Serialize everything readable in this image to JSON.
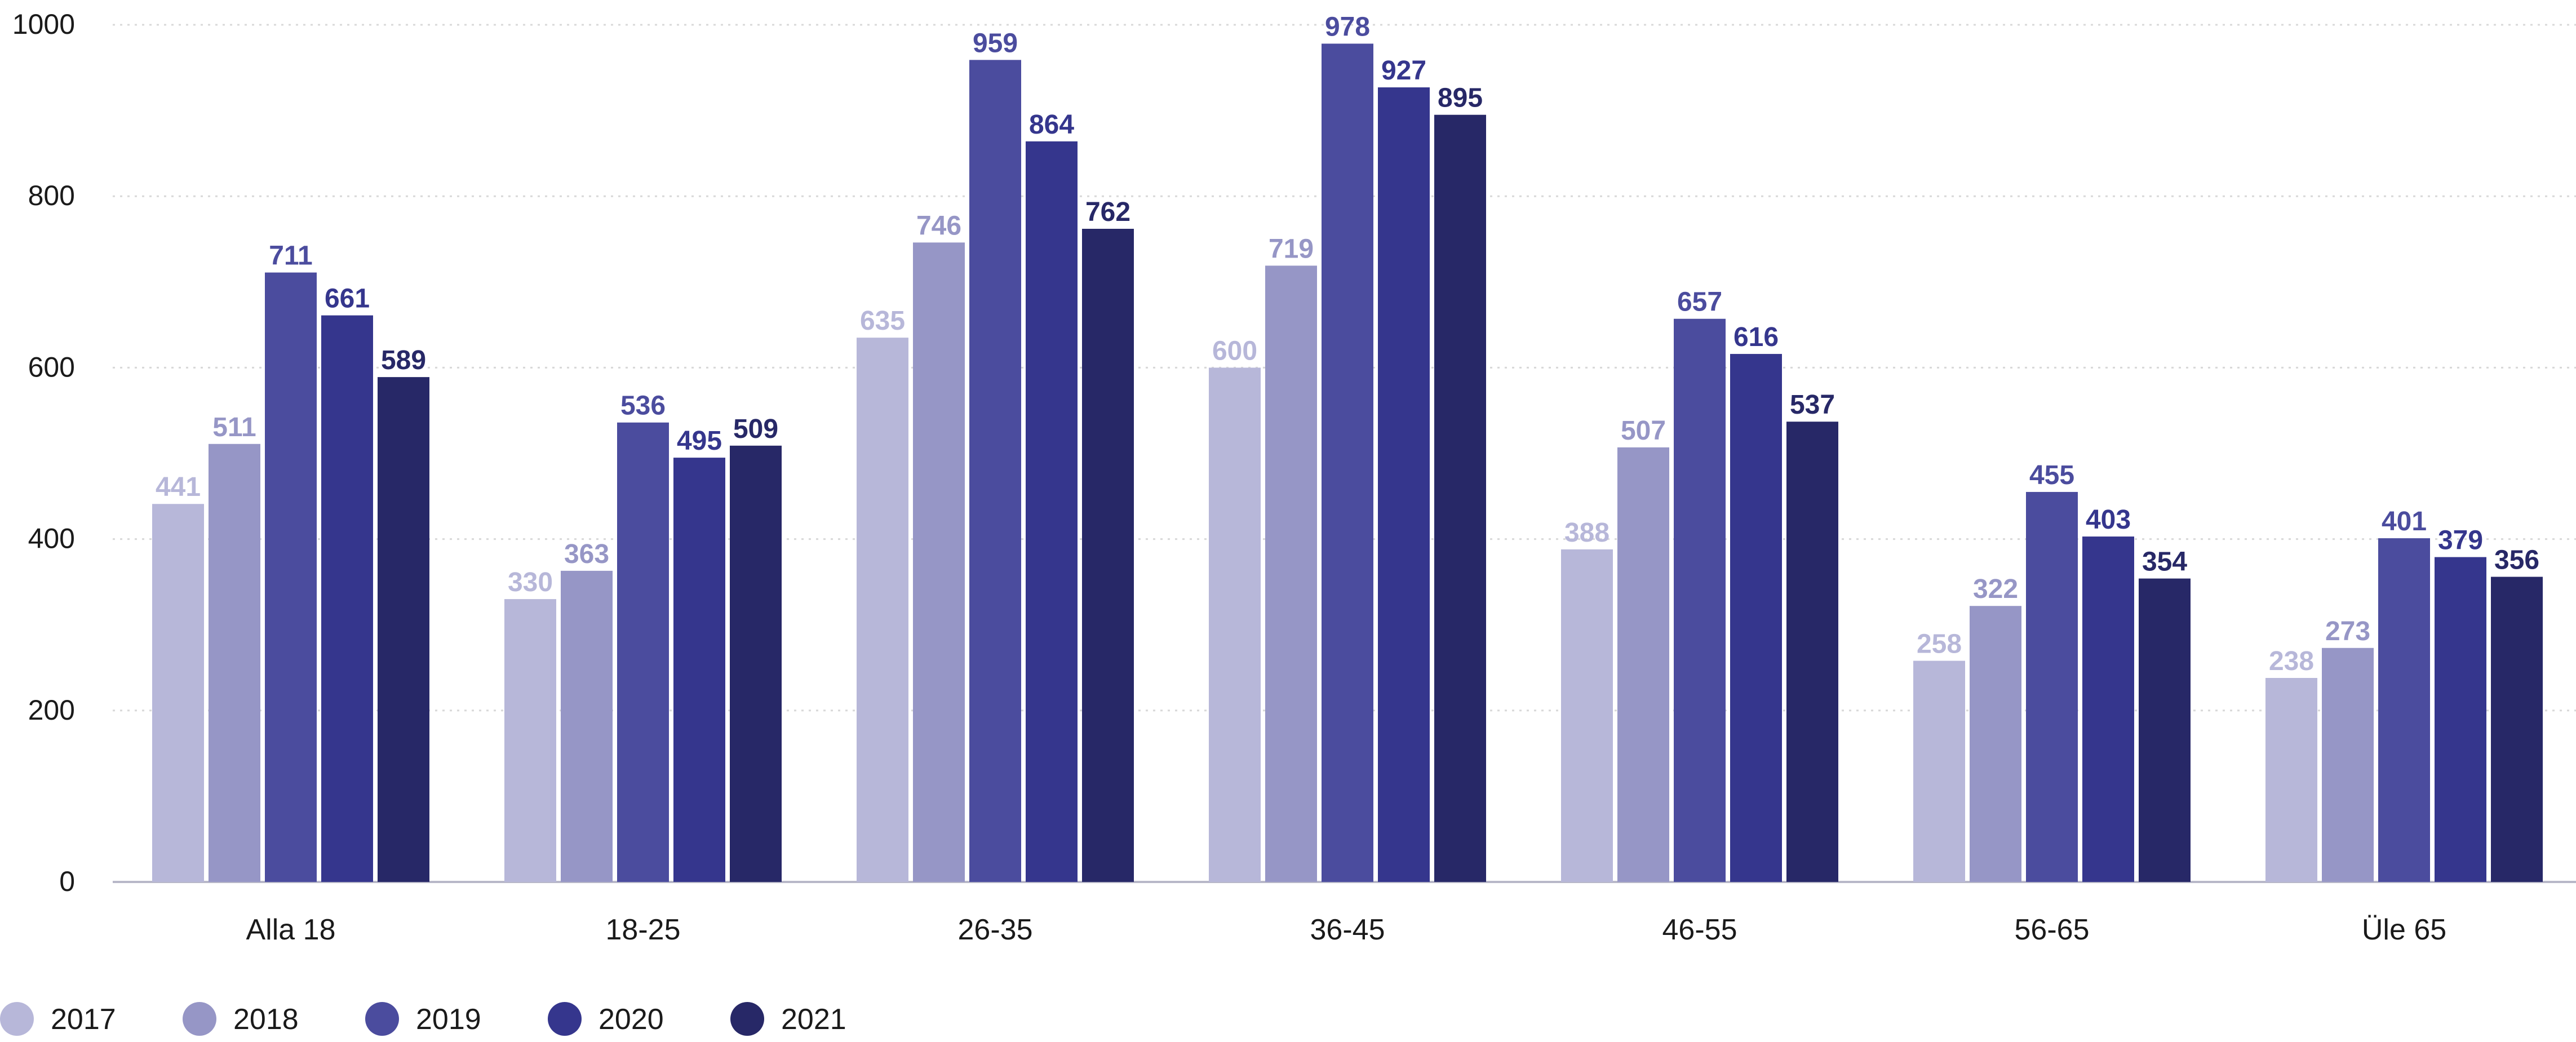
{
  "chart_data": {
    "type": "bar",
    "categories": [
      "Alla 18",
      "18-25",
      "26-35",
      "36-45",
      "46-55",
      "56-65",
      "Üle 65"
    ],
    "series": [
      {
        "name": "2017",
        "color": "#b7b7d9",
        "values": [
          441,
          330,
          635,
          600,
          388,
          258,
          238
        ]
      },
      {
        "name": "2018",
        "color": "#9696c6",
        "values": [
          511,
          363,
          746,
          719,
          507,
          322,
          273
        ]
      },
      {
        "name": "2019",
        "color": "#4b4c9e",
        "values": [
          711,
          536,
          959,
          978,
          657,
          455,
          401
        ]
      },
      {
        "name": "2020",
        "color": "#35368d",
        "values": [
          661,
          495,
          864,
          927,
          616,
          403,
          379
        ]
      },
      {
        "name": "2021",
        "color": "#272867",
        "values": [
          589,
          509,
          762,
          895,
          537,
          354,
          356
        ]
      }
    ],
    "yticks": [
      0,
      200,
      400,
      600,
      800,
      1000
    ],
    "ylim": [
      0,
      1000
    ],
    "grid": true,
    "legend": "bottom-left",
    "data_labels": true
  }
}
